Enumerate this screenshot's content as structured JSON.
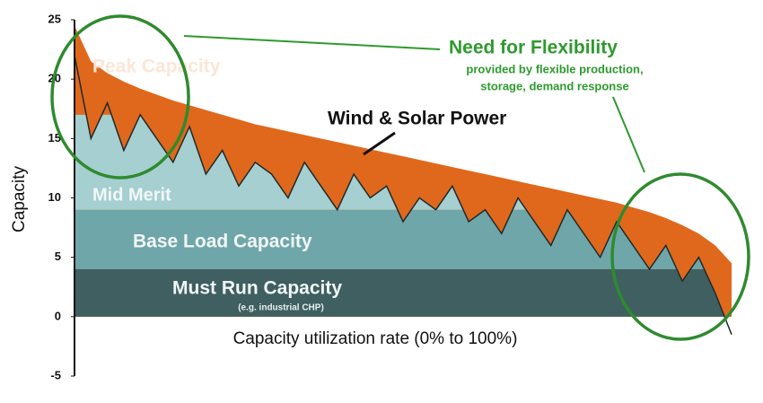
{
  "chart_data": {
    "type": "area",
    "ylabel": "Capacity",
    "xlabel": "Capacity utilization rate (0% to 100%)",
    "ylim": [
      -5,
      25
    ],
    "yticks": [
      -5,
      0,
      5,
      10,
      15,
      20,
      25
    ],
    "categories": [
      null,
      null,
      null,
      null,
      null,
      null,
      null,
      null,
      null,
      null,
      null,
      null,
      null,
      null,
      null,
      null,
      null,
      null,
      null,
      null,
      null,
      null,
      null,
      null,
      null,
      null,
      null,
      null,
      null,
      null,
      null,
      null,
      null,
      null,
      null,
      null,
      null,
      null,
      null,
      null,
      null
    ],
    "series": [
      {
        "name": "Peak Capacity",
        "color": "#e0681c",
        "values": [
          24.5,
          21.5,
          20.5,
          19.8,
          19.2,
          18.7,
          18.2,
          17.8,
          17.4,
          17.0,
          16.6,
          16.2,
          15.9,
          15.6,
          15.3,
          15.0,
          14.7,
          14.4,
          14.1,
          13.8,
          13.5,
          13.2,
          12.9,
          12.6,
          12.3,
          12.0,
          11.7,
          11.4,
          11.1,
          10.8,
          10.5,
          10.2,
          9.9,
          9.6,
          9.2,
          8.8,
          8.3,
          7.7,
          7.0,
          6.0,
          4.5
        ]
      },
      {
        "name": "Wind & Solar Power",
        "color": "#1e2a2a",
        "values": [
          22,
          15,
          18,
          14,
          17,
          15,
          13,
          16,
          12,
          14,
          11,
          13,
          12,
          10,
          13,
          11,
          9,
          12,
          10,
          11,
          8,
          10,
          9,
          11,
          8,
          9,
          7,
          10,
          8,
          6,
          9,
          7,
          5,
          8,
          6,
          4,
          6,
          3,
          5,
          2,
          -1.5
        ]
      }
    ],
    "layers": [
      {
        "name": "Must Run Capacity",
        "value": 4,
        "color": "#3f5f60"
      },
      {
        "name": "Base Load Capacity",
        "value": 5,
        "color": "#6fa6a9"
      },
      {
        "name": "Mid Merit",
        "value": 8,
        "color": "#a5cfd1"
      }
    ],
    "annotations": {
      "must_run_note": "(e.g. industrial CHP)",
      "flex_title": "Need for Flexibility",
      "flex_lines": [
        "provided by flexible production,",
        "storage, demand response"
      ]
    }
  }
}
